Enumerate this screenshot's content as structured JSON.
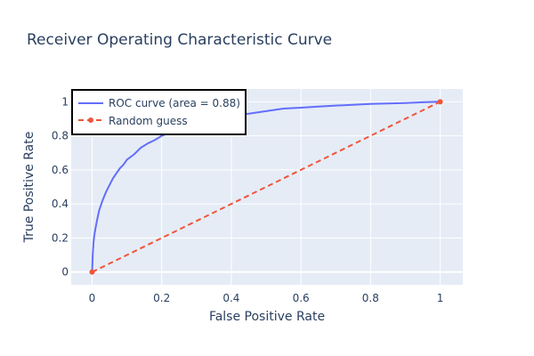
{
  "chart_data": {
    "type": "line",
    "title": "Receiver Operating Characteristic Curve",
    "xlabel": "False Positive Rate",
    "ylabel": "True Positive Rate",
    "xlim": [
      -0.06,
      1.065
    ],
    "ylim": [
      -0.075,
      1.075
    ],
    "x_ticks": [
      0,
      0.2,
      0.4,
      0.6,
      0.8,
      1
    ],
    "y_ticks": [
      0,
      0.2,
      0.4,
      0.6,
      0.8,
      1
    ],
    "x_tick_labels": [
      "0",
      "0.2",
      "0.4",
      "0.6",
      "0.8",
      "1"
    ],
    "y_tick_labels": [
      "0",
      "0.2",
      "0.4",
      "0.6",
      "0.8",
      "1"
    ],
    "grid": true,
    "legend_position": "top-left",
    "series": [
      {
        "name": "ROC curve (area = 0.88)",
        "color": "#636efa",
        "dash": "solid",
        "x": [
          0,
          0.002,
          0.004,
          0.006,
          0.01,
          0.015,
          0.02,
          0.025,
          0.03,
          0.04,
          0.05,
          0.06,
          0.07,
          0.08,
          0.09,
          0.1,
          0.12,
          0.14,
          0.16,
          0.18,
          0.2,
          0.22,
          0.25,
          0.28,
          0.3,
          0.35,
          0.4,
          0.45,
          0.5,
          0.55,
          0.6,
          0.65,
          0.7,
          0.75,
          0.8,
          0.85,
          0.9,
          0.95,
          1
        ],
        "y": [
          0,
          0.1,
          0.17,
          0.21,
          0.26,
          0.31,
          0.36,
          0.39,
          0.42,
          0.47,
          0.51,
          0.55,
          0.58,
          0.61,
          0.63,
          0.66,
          0.69,
          0.73,
          0.755,
          0.775,
          0.8,
          0.815,
          0.84,
          0.865,
          0.88,
          0.91,
          0.925,
          0.93,
          0.945,
          0.96,
          0.965,
          0.972,
          0.978,
          0.982,
          0.987,
          0.99,
          0.993,
          0.997,
          1
        ]
      },
      {
        "name": "Random guess",
        "color": "#ef553b",
        "dash": "dash",
        "markers": true,
        "x": [
          0,
          1
        ],
        "y": [
          0,
          1
        ]
      }
    ]
  },
  "colors": {
    "plot_background": "#e5ecf6",
    "grid": "#ffffff",
    "text": "#2a3f5f"
  }
}
